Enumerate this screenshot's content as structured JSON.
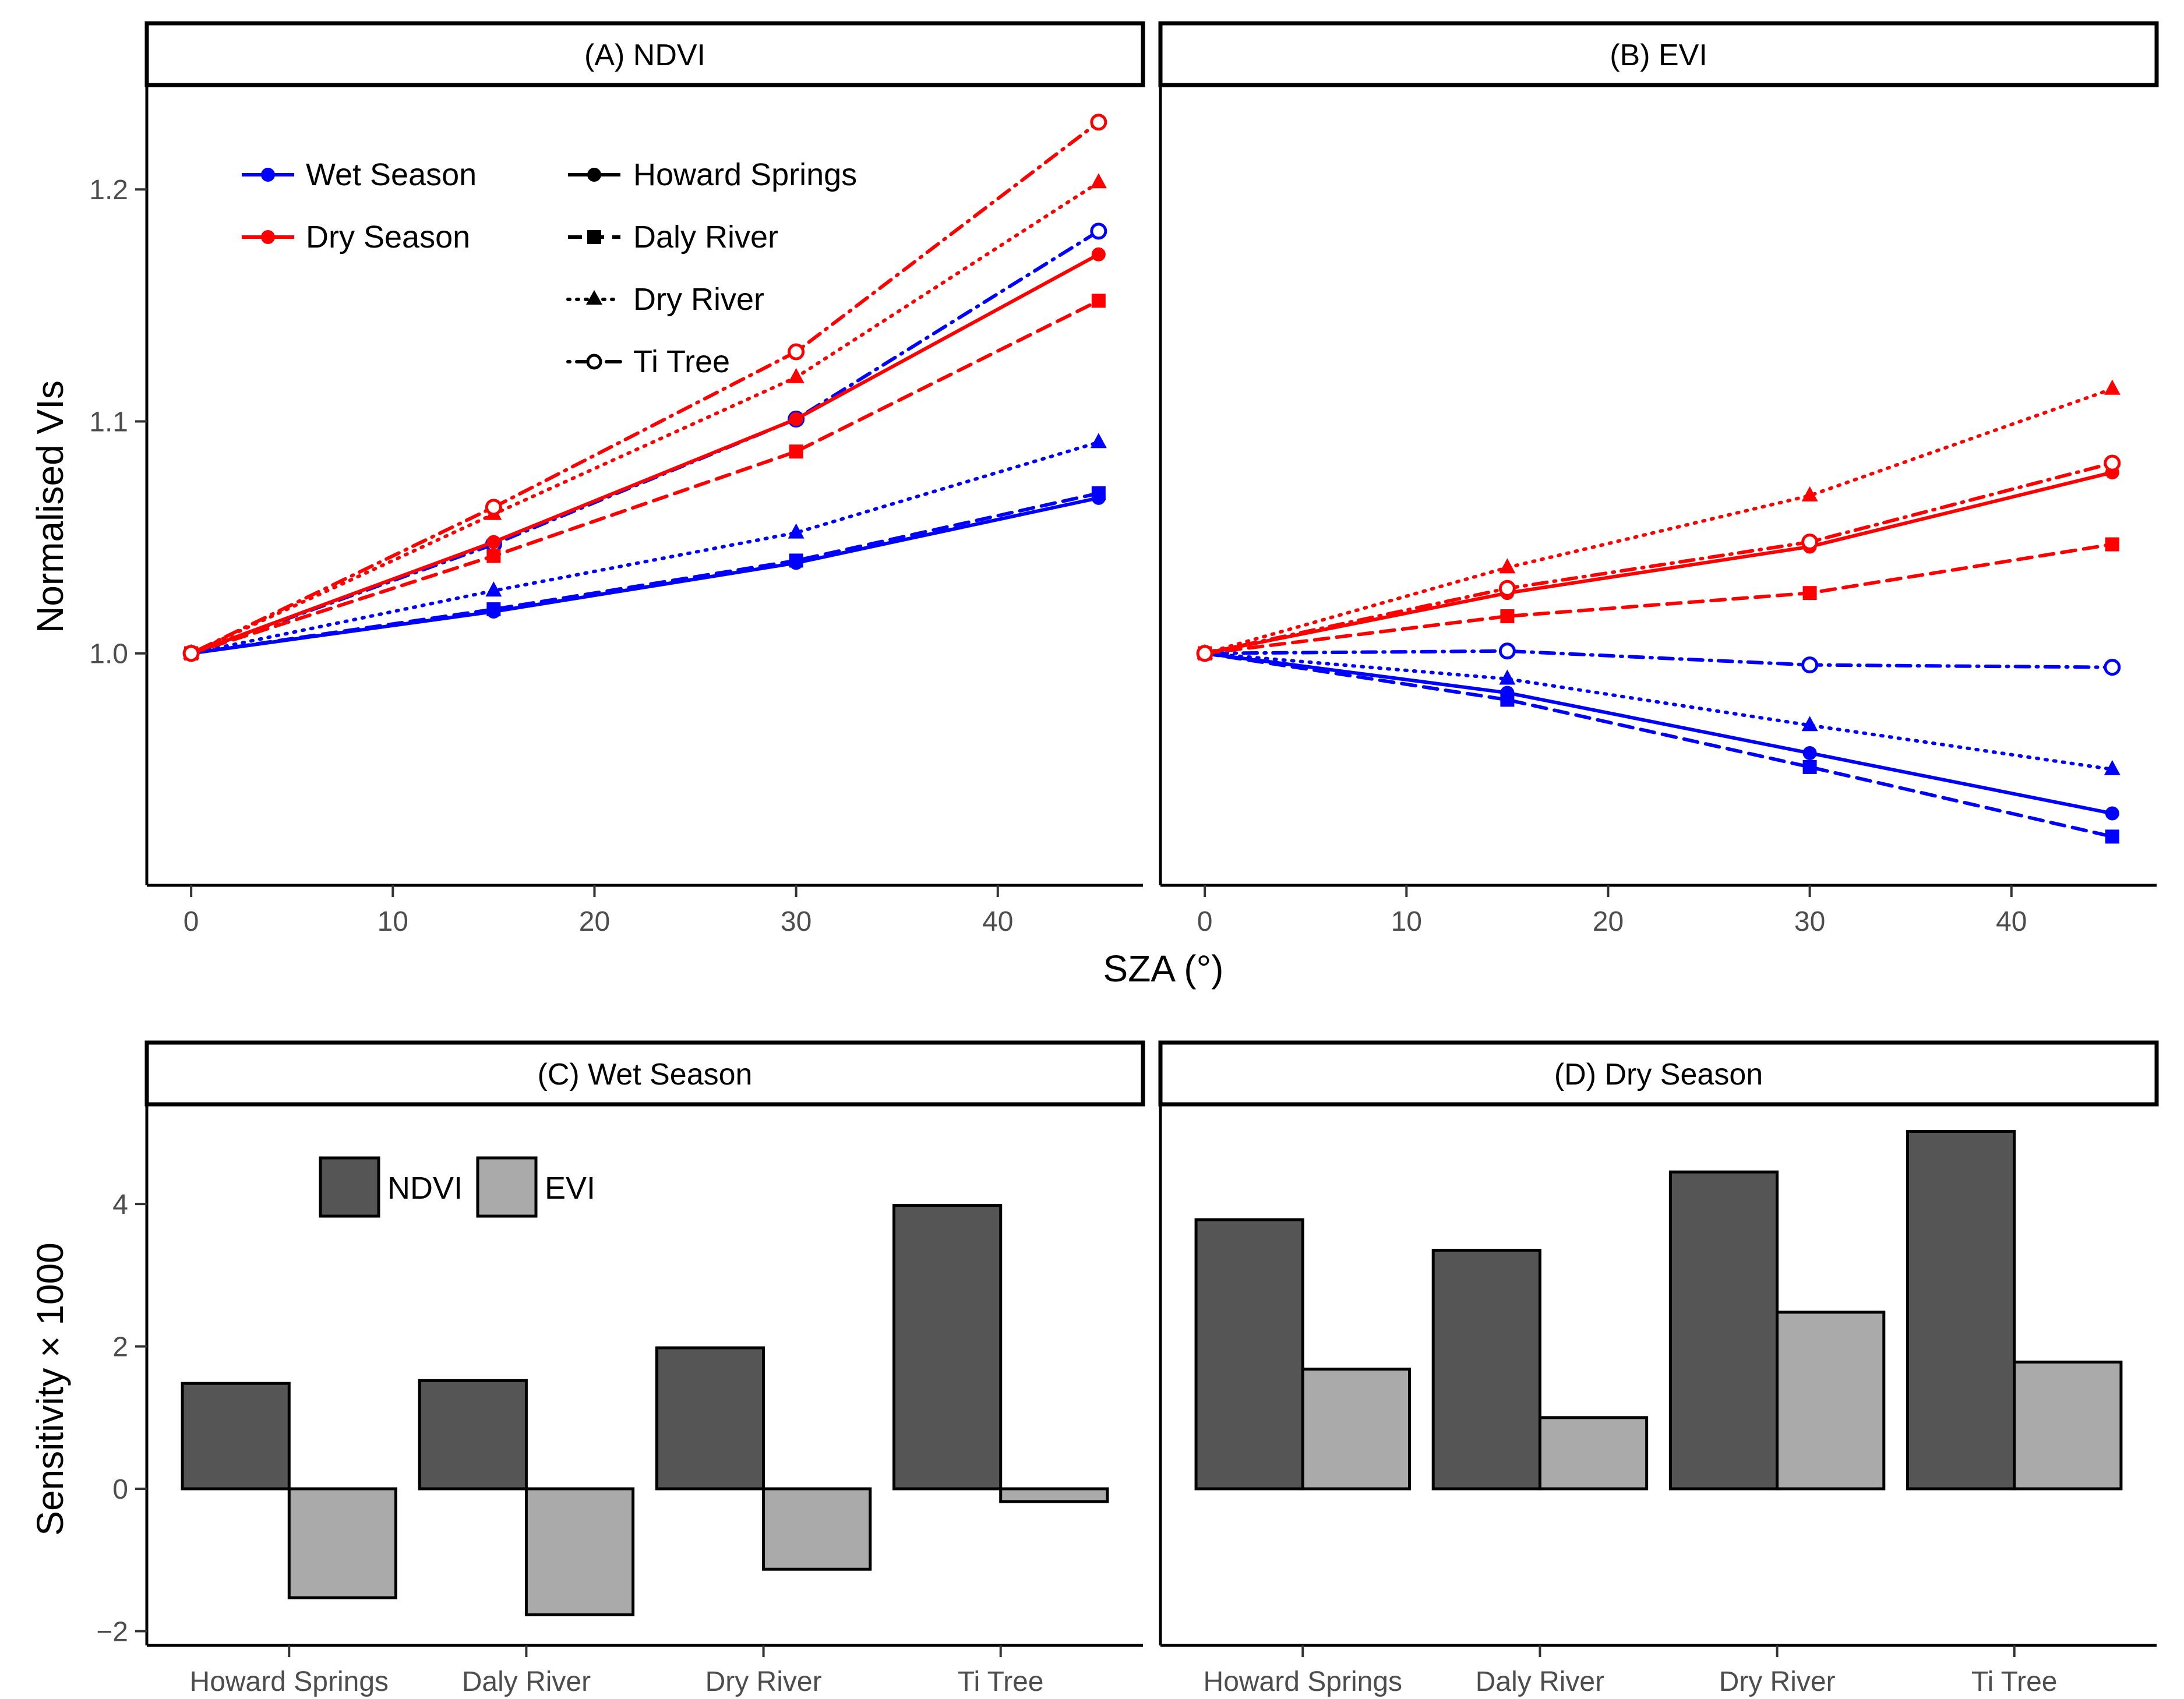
{
  "chart_data": [
    {
      "panel": "A",
      "type": "line",
      "title": "(A) NDVI",
      "xlabel": "SZA (°)",
      "ylabel": "Normalised VIs",
      "x": [
        0,
        15,
        30,
        45
      ],
      "xlim": [
        -2.2,
        47.2
      ],
      "ylim": [
        0.9,
        1.245
      ],
      "xticks": [
        0,
        10,
        20,
        30,
        40
      ],
      "yticks": [
        1.0,
        1.1,
        1.2
      ],
      "ytick_labels": [
        "1.0",
        "1.1",
        "1.2"
      ],
      "series": [
        {
          "name": "Wet Season – Howard Springs",
          "season": "wet",
          "site": "Howard Springs",
          "values": [
            1.0,
            1.018,
            1.039,
            1.067
          ]
        },
        {
          "name": "Wet Season – Daly River",
          "season": "wet",
          "site": "Daly River",
          "values": [
            1.0,
            1.019,
            1.04,
            1.069
          ]
        },
        {
          "name": "Wet Season – Dry River",
          "season": "wet",
          "site": "Dry River",
          "values": [
            1.0,
            1.027,
            1.052,
            1.091
          ]
        },
        {
          "name": "Wet Season – Ti Tree",
          "season": "wet",
          "site": "Ti Tree",
          "values": [
            1.0,
            1.047,
            1.101,
            1.182
          ]
        },
        {
          "name": "Dry Season – Howard Springs",
          "season": "dry",
          "site": "Howard Springs",
          "values": [
            1.0,
            1.048,
            1.101,
            1.172
          ]
        },
        {
          "name": "Dry Season – Daly River",
          "season": "dry",
          "site": "Daly River",
          "values": [
            1.0,
            1.042,
            1.087,
            1.152
          ]
        },
        {
          "name": "Dry Season – Dry River",
          "season": "dry",
          "site": "Dry River",
          "values": [
            1.0,
            1.06,
            1.119,
            1.203
          ]
        },
        {
          "name": "Dry Season – Ti Tree",
          "season": "dry",
          "site": "Ti Tree",
          "values": [
            1.0,
            1.063,
            1.13,
            1.229
          ]
        }
      ],
      "legend": {
        "position": "top-left",
        "season_entries": [
          "Wet Season",
          "Dry Season"
        ],
        "site_entries": [
          "Howard Springs",
          "Daly River",
          "Dry River",
          "Ti Tree"
        ]
      }
    },
    {
      "panel": "B",
      "type": "line",
      "title": "(B) EVI",
      "xlabel": "SZA (°)",
      "ylabel": "Normalised VIs",
      "x": [
        0,
        15,
        30,
        45
      ],
      "xlim": [
        -2.2,
        47.2
      ],
      "ylim": [
        0.9,
        1.245
      ],
      "xticks": [
        0,
        10,
        20,
        30,
        40
      ],
      "series": [
        {
          "name": "Wet Season – Howard Springs",
          "season": "wet",
          "site": "Howard Springs",
          "values": [
            1.0,
            0.983,
            0.957,
            0.931
          ]
        },
        {
          "name": "Wet Season – Daly River",
          "season": "wet",
          "site": "Daly River",
          "values": [
            1.0,
            0.98,
            0.951,
            0.921
          ]
        },
        {
          "name": "Wet Season – Dry River",
          "season": "wet",
          "site": "Dry River",
          "values": [
            1.0,
            0.989,
            0.969,
            0.95
          ]
        },
        {
          "name": "Wet Season – Ti Tree",
          "season": "wet",
          "site": "Ti Tree",
          "values": [
            1.0,
            1.001,
            0.995,
            0.994
          ]
        },
        {
          "name": "Dry Season – Howard Springs",
          "season": "dry",
          "site": "Howard Springs",
          "values": [
            1.0,
            1.026,
            1.046,
            1.078
          ]
        },
        {
          "name": "Dry Season – Daly River",
          "season": "dry",
          "site": "Daly River",
          "values": [
            1.0,
            1.016,
            1.026,
            1.047
          ]
        },
        {
          "name": "Dry Season – Dry River",
          "season": "dry",
          "site": "Dry River",
          "values": [
            1.0,
            1.037,
            1.068,
            1.114
          ]
        },
        {
          "name": "Dry Season – Ti Tree",
          "season": "dry",
          "site": "Ti Tree",
          "values": [
            1.0,
            1.028,
            1.048,
            1.082
          ]
        }
      ]
    },
    {
      "panel": "C",
      "type": "bar",
      "title": "(C) Wet Season",
      "ylabel": "Sensitivity × 1000",
      "categories": [
        "Howard Springs",
        "Daly River",
        "Dry River",
        "Ti Tree"
      ],
      "ylim": [
        -2.2,
        5.4
      ],
      "yticks": [
        -2,
        0,
        2,
        4
      ],
      "ytick_labels": [
        "−2",
        "0",
        "2",
        "4"
      ],
      "series": [
        {
          "name": "NDVI",
          "values": [
            1.48,
            1.52,
            1.98,
            3.98
          ]
        },
        {
          "name": "EVI",
          "values": [
            -1.53,
            -1.77,
            -1.13,
            -0.18
          ]
        }
      ],
      "legend": {
        "position": "top-left",
        "entries": [
          "NDVI",
          "EVI"
        ]
      }
    },
    {
      "panel": "D",
      "type": "bar",
      "title": "(D) Dry Season",
      "ylabel": "Sensitivity × 1000",
      "categories": [
        "Howard Springs",
        "Daly River",
        "Dry River",
        "Ti Tree"
      ],
      "ylim": [
        -2.2,
        5.4
      ],
      "series": [
        {
          "name": "NDVI",
          "values": [
            3.78,
            3.35,
            4.45,
            5.02
          ]
        },
        {
          "name": "EVI",
          "values": [
            1.68,
            1.0,
            2.48,
            1.78
          ]
        }
      ]
    }
  ],
  "colors": {
    "wet": "#0000ff",
    "dry": "#ff0000",
    "ndvi": "#555555",
    "evi": "#aaaaaa",
    "strip_fill": "#ffffff",
    "axis": "#000000",
    "tick_label": "#4d4d4d"
  },
  "site_styles": {
    "Howard Springs": {
      "dash": "solid",
      "marker": "filled-circle"
    },
    "Daly River": {
      "dash": "dashed",
      "marker": "filled-square"
    },
    "Dry River": {
      "dash": "dotted",
      "marker": "filled-triangle"
    },
    "Ti Tree": {
      "dash": "dot-dash",
      "marker": "open-circle"
    }
  }
}
